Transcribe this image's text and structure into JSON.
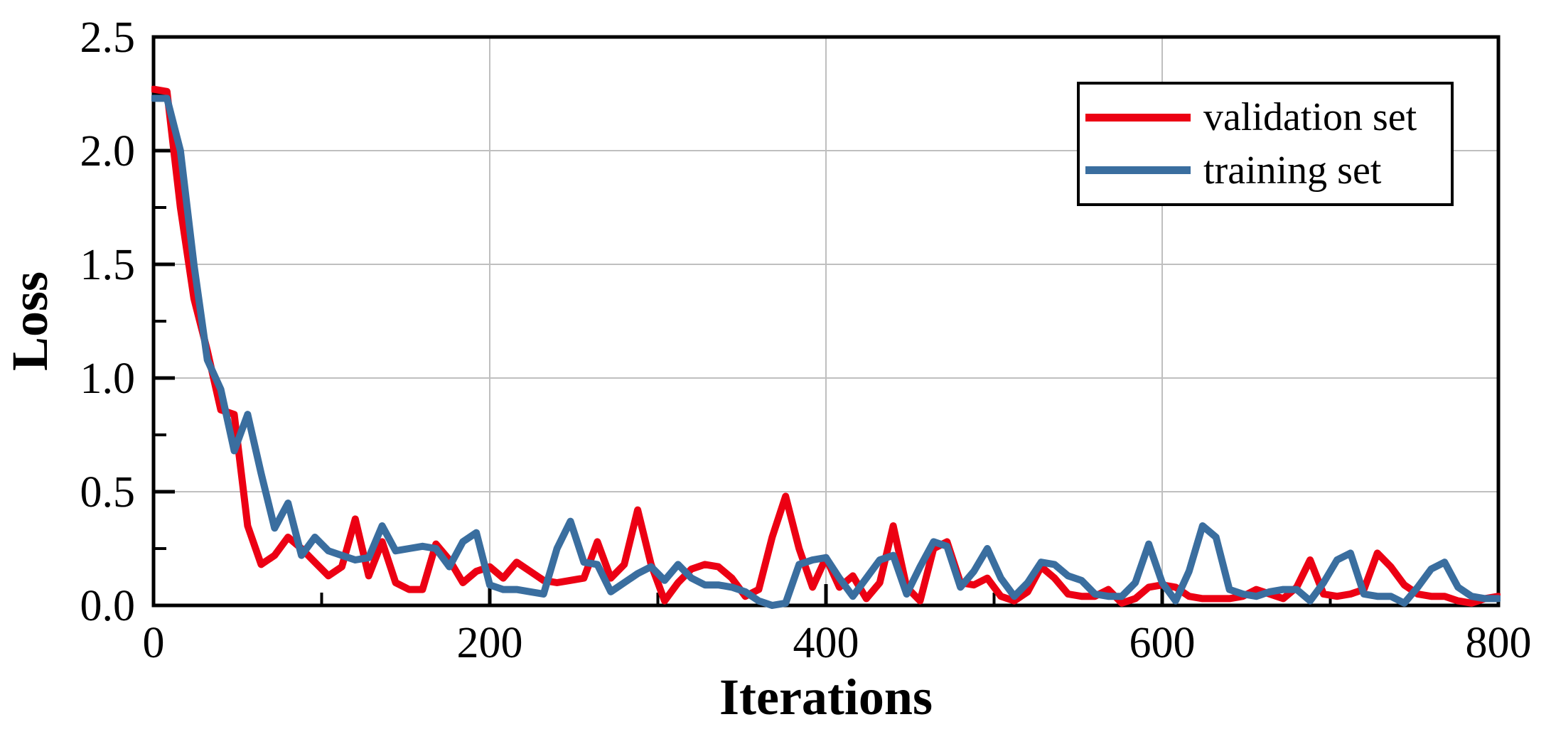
{
  "figure": {
    "background": "#ffffff",
    "frame_color": "#000000",
    "grid_color": "#bfbfbf",
    "tick_color": "#000000"
  },
  "chart_data": {
    "type": "line",
    "xlabel": "Iterations",
    "ylabel": "Loss",
    "xlim": [
      0,
      800
    ],
    "ylim": [
      0,
      2.5
    ],
    "grid": true,
    "legend_position": "top-right",
    "x_major_ticks": [
      0,
      200,
      400,
      600,
      800
    ],
    "x_tick_labels": [
      "0",
      "200",
      "400",
      "600",
      "800"
    ],
    "x_minor_ticks": [
      100,
      300,
      500,
      700
    ],
    "y_major_ticks": [
      0,
      0.5,
      1.0,
      1.5,
      2.0,
      2.5
    ],
    "y_tick_labels": [
      "0.0",
      "0.5",
      "1.0",
      "1.5",
      "2.0",
      "2.5"
    ],
    "y_minor_ticks": [
      0.25,
      0.75,
      1.25,
      1.75,
      2.25
    ],
    "x": [
      0,
      8,
      16,
      24,
      32,
      40,
      48,
      56,
      64,
      72,
      80,
      88,
      96,
      104,
      112,
      120,
      128,
      136,
      144,
      152,
      160,
      168,
      176,
      184,
      192,
      200,
      208,
      216,
      224,
      232,
      240,
      248,
      256,
      264,
      272,
      280,
      288,
      296,
      304,
      312,
      320,
      328,
      336,
      344,
      352,
      360,
      368,
      376,
      384,
      392,
      400,
      408,
      416,
      424,
      432,
      440,
      448,
      456,
      464,
      472,
      480,
      488,
      496,
      504,
      512,
      520,
      528,
      536,
      544,
      552,
      560,
      568,
      576,
      584,
      592,
      600,
      608,
      616,
      624,
      632,
      640,
      648,
      656,
      664,
      672,
      680,
      688,
      696,
      704,
      712,
      720,
      728,
      736,
      744,
      752,
      760,
      768,
      776,
      784,
      792,
      800
    ],
    "series": [
      {
        "name": "validation set",
        "color": "#ec0013",
        "values": [
          2.27,
          2.26,
          1.75,
          1.35,
          1.12,
          0.86,
          0.84,
          0.35,
          0.18,
          0.22,
          0.3,
          0.25,
          0.19,
          0.13,
          0.17,
          0.38,
          0.13,
          0.28,
          0.1,
          0.07,
          0.07,
          0.27,
          0.2,
          0.1,
          0.15,
          0.17,
          0.12,
          0.19,
          0.15,
          0.11,
          0.1,
          0.11,
          0.12,
          0.28,
          0.12,
          0.18,
          0.42,
          0.18,
          0.02,
          0.1,
          0.16,
          0.18,
          0.17,
          0.12,
          0.04,
          0.07,
          0.3,
          0.48,
          0.25,
          0.08,
          0.21,
          0.08,
          0.13,
          0.03,
          0.1,
          0.35,
          0.08,
          0.02,
          0.25,
          0.28,
          0.1,
          0.09,
          0.12,
          0.04,
          0.02,
          0.06,
          0.17,
          0.12,
          0.05,
          0.04,
          0.04,
          0.07,
          0.01,
          0.03,
          0.08,
          0.09,
          0.08,
          0.04,
          0.03,
          0.03,
          0.03,
          0.04,
          0.07,
          0.05,
          0.03,
          0.08,
          0.2,
          0.05,
          0.04,
          0.05,
          0.07,
          0.23,
          0.17,
          0.09,
          0.05,
          0.04,
          0.04,
          0.02,
          0.01,
          0.03,
          0.04
        ]
      },
      {
        "name": "training set",
        "color": "#3a6e9f",
        "values": [
          2.23,
          2.23,
          2.0,
          1.5,
          1.08,
          0.95,
          0.68,
          0.84,
          0.58,
          0.34,
          0.45,
          0.22,
          0.3,
          0.24,
          0.22,
          0.2,
          0.21,
          0.35,
          0.24,
          0.25,
          0.26,
          0.25,
          0.17,
          0.28,
          0.32,
          0.09,
          0.07,
          0.07,
          0.06,
          0.05,
          0.25,
          0.37,
          0.19,
          0.18,
          0.06,
          0.1,
          0.14,
          0.17,
          0.11,
          0.18,
          0.12,
          0.09,
          0.09,
          0.08,
          0.06,
          0.02,
          0.0,
          0.01,
          0.18,
          0.2,
          0.21,
          0.12,
          0.04,
          0.12,
          0.2,
          0.22,
          0.05,
          0.17,
          0.28,
          0.26,
          0.08,
          0.15,
          0.25,
          0.12,
          0.04,
          0.1,
          0.19,
          0.18,
          0.13,
          0.11,
          0.05,
          0.04,
          0.04,
          0.1,
          0.27,
          0.1,
          0.02,
          0.15,
          0.35,
          0.3,
          0.07,
          0.05,
          0.04,
          0.06,
          0.07,
          0.07,
          0.02,
          0.1,
          0.2,
          0.23,
          0.05,
          0.04,
          0.04,
          0.01,
          0.08,
          0.16,
          0.19,
          0.08,
          0.04,
          0.03,
          0.03
        ]
      }
    ]
  }
}
